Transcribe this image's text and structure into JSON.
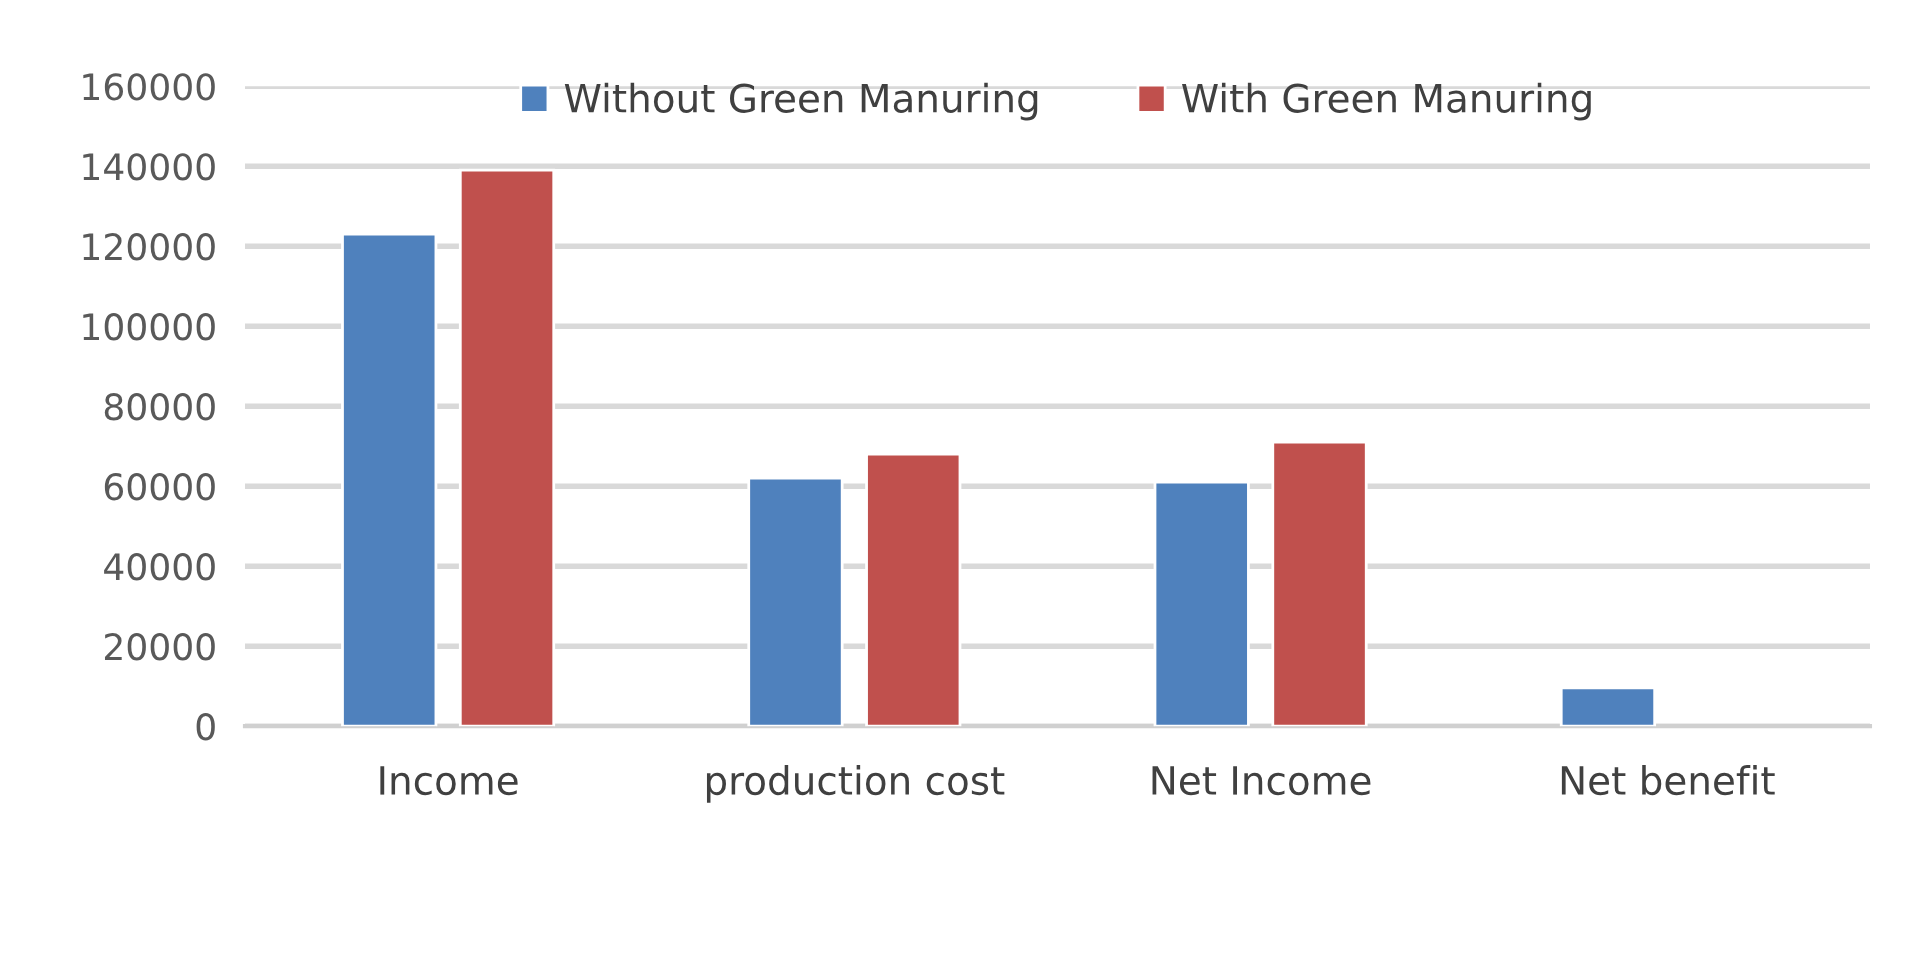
{
  "chart_data": {
    "type": "bar",
    "categories": [
      "Income",
      "production cost",
      "Net Income",
      "Net benefit"
    ],
    "series": [
      {
        "name": "Without Green Manuring",
        "color": "#4f81bd",
        "values": [
          123000,
          62000,
          61000,
          9600
        ]
      },
      {
        "name": "With Green Manuring",
        "color": "#c0504d",
        "values": [
          139000,
          68000,
          71000,
          null
        ]
      }
    ],
    "ylim": [
      0,
      160000
    ],
    "yticks": [
      0,
      20000,
      40000,
      60000,
      80000,
      100000,
      120000,
      140000,
      160000
    ],
    "grid": "y",
    "legend": "top"
  }
}
